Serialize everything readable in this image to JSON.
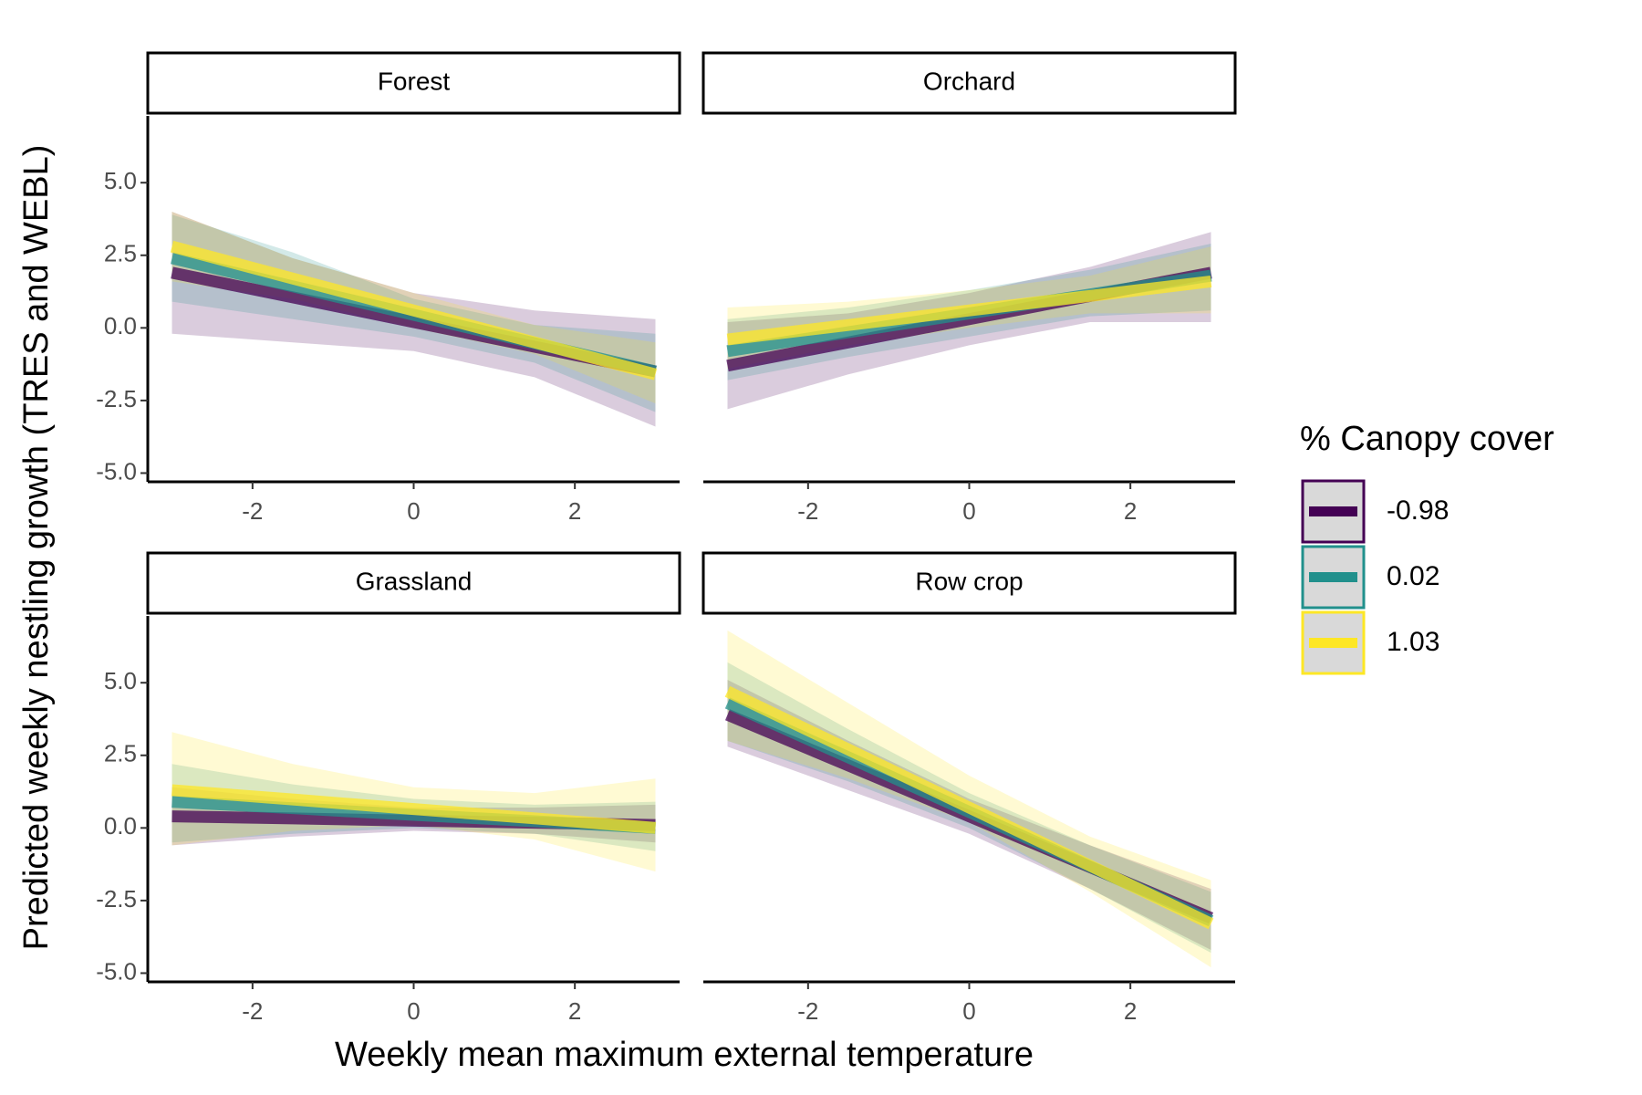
{
  "chart_data": [
    {
      "type": "line",
      "title": "Forest",
      "x": [
        -3,
        -1.5,
        0,
        1.5,
        3
      ],
      "xlim": [
        -3.3,
        3.3
      ],
      "xticks": [
        -2,
        0,
        2
      ],
      "ylim": [
        -5.3,
        7.3
      ],
      "yticks": [
        {
          "value": 5,
          "label": "5.0"
        },
        {
          "value": 2.5,
          "label": "2.5"
        },
        {
          "value": 0,
          "label": "0.0"
        },
        {
          "value": -2.5,
          "label": "-2.5"
        },
        {
          "value": -5,
          "label": "-5.0"
        }
      ],
      "series": [
        {
          "name": "-0.98",
          "color": "#440154",
          "values": [
            1.9,
            1.05,
            0.2,
            -0.65,
            -1.5
          ],
          "lower": [
            -0.2,
            -0.5,
            -0.8,
            -1.7,
            -3.4
          ],
          "upper": [
            4.0,
            2.4,
            1.2,
            0.6,
            0.3
          ]
        },
        {
          "name": "0.02",
          "color": "#21908c",
          "values": [
            2.4,
            1.43,
            0.45,
            -0.53,
            -1.5
          ],
          "lower": [
            0.9,
            0.3,
            -0.3,
            -1.2,
            -2.9
          ],
          "upper": [
            3.9,
            2.6,
            1.0,
            0.1,
            -0.2
          ]
        },
        {
          "name": "1.03",
          "color": "#fde725",
          "values": [
            2.8,
            1.7,
            0.6,
            -0.5,
            -1.6
          ],
          "lower": [
            1.6,
            1.0,
            0.0,
            -0.9,
            -2.6
          ],
          "upper": [
            4.0,
            2.4,
            1.2,
            0.1,
            -0.5
          ]
        }
      ]
    },
    {
      "type": "line",
      "title": "Orchard",
      "x": [
        -3,
        -1.5,
        0,
        1.5,
        3
      ],
      "xlim": [
        -3.3,
        3.3
      ],
      "xticks": [
        -2,
        0,
        2
      ],
      "ylim": [
        -5.3,
        7.3
      ],
      "series": [
        {
          "name": "-0.98",
          "color": "#440154",
          "values": [
            -1.3,
            -0.5,
            0.3,
            1.1,
            1.9
          ],
          "lower": [
            -2.8,
            -1.6,
            -0.6,
            0.2,
            0.2
          ],
          "upper": [
            0.2,
            0.5,
            1.2,
            2.1,
            3.3
          ]
        },
        {
          "name": "0.02",
          "color": "#21908c",
          "values": [
            -0.8,
            -0.15,
            0.5,
            1.15,
            1.8
          ],
          "lower": [
            -1.8,
            -1.0,
            -0.3,
            0.4,
            0.6
          ],
          "upper": [
            0.3,
            0.7,
            1.3,
            2.0,
            2.9
          ]
        },
        {
          "name": "1.03",
          "color": "#fde725",
          "values": [
            -0.4,
            0.1,
            0.6,
            1.1,
            1.6
          ],
          "lower": [
            -1.4,
            -0.6,
            0.0,
            0.5,
            0.5
          ],
          "upper": [
            0.7,
            0.9,
            1.3,
            1.8,
            2.8
          ]
        }
      ]
    },
    {
      "type": "line",
      "title": "Grassland",
      "x": [
        -3,
        -1.5,
        0,
        1.5,
        3
      ],
      "xlim": [
        -3.3,
        3.3
      ],
      "xticks": [
        -2,
        0,
        2
      ],
      "ylim": [
        -5.3,
        7.3
      ],
      "yticks": [
        {
          "value": 5,
          "label": "5.0"
        },
        {
          "value": 2.5,
          "label": "2.5"
        },
        {
          "value": 0,
          "label": "0.0"
        },
        {
          "value": -2.5,
          "label": "-2.5"
        },
        {
          "value": -5,
          "label": "-5.0"
        }
      ],
      "series": [
        {
          "name": "-0.98",
          "color": "#440154",
          "values": [
            0.4,
            0.33,
            0.25,
            0.18,
            0.1
          ],
          "lower": [
            -0.6,
            -0.3,
            -0.1,
            -0.2,
            -0.5
          ],
          "upper": [
            1.4,
            1.0,
            0.7,
            0.7,
            0.8
          ]
        },
        {
          "name": "0.02",
          "color": "#21908c",
          "values": [
            0.9,
            0.68,
            0.45,
            0.23,
            0.0
          ],
          "lower": [
            -0.5,
            -0.2,
            0.0,
            -0.2,
            -0.8
          ],
          "upper": [
            2.2,
            1.5,
            1.0,
            0.8,
            0.9
          ]
        },
        {
          "name": "1.03",
          "color": "#fde725",
          "values": [
            1.3,
            0.98,
            0.65,
            0.33,
            0.0
          ],
          "lower": [
            -0.6,
            -0.1,
            0.1,
            -0.4,
            -1.5
          ],
          "upper": [
            3.3,
            2.2,
            1.4,
            1.2,
            1.7
          ]
        }
      ]
    },
    {
      "type": "line",
      "title": "Row crop",
      "x": [
        -3,
        -1.5,
        0,
        1.5,
        3
      ],
      "xlim": [
        -3.3,
        3.3
      ],
      "xticks": [
        -2,
        0,
        2
      ],
      "ylim": [
        -5.3,
        7.3
      ],
      "series": [
        {
          "name": "-0.98",
          "color": "#440154",
          "values": [
            3.9,
            2.15,
            0.4,
            -1.35,
            -3.1
          ],
          "lower": [
            2.8,
            1.3,
            -0.2,
            -2.1,
            -4.2
          ],
          "upper": [
            5.1,
            3.0,
            1.0,
            -0.6,
            -2.1
          ]
        },
        {
          "name": "0.02",
          "color": "#21908c",
          "values": [
            4.3,
            2.43,
            0.55,
            -1.33,
            -3.2
          ],
          "lower": [
            3.0,
            1.6,
            0.0,
            -2.1,
            -4.3
          ],
          "upper": [
            5.7,
            3.4,
            1.2,
            -0.6,
            -2.2
          ]
        },
        {
          "name": "1.03",
          "color": "#fde725",
          "values": [
            4.7,
            2.7,
            0.7,
            -1.3,
            -3.3
          ],
          "lower": [
            3.0,
            1.7,
            0.2,
            -2.2,
            -4.8
          ],
          "upper": [
            6.8,
            4.3,
            1.8,
            -0.3,
            -1.8
          ]
        }
      ]
    }
  ],
  "xlabel": "Weekly mean maximum external temperature",
  "ylabel": "Predicted weekly nestling growth (TRES and WEBL)",
  "legend_title": "% Canopy cover"
}
